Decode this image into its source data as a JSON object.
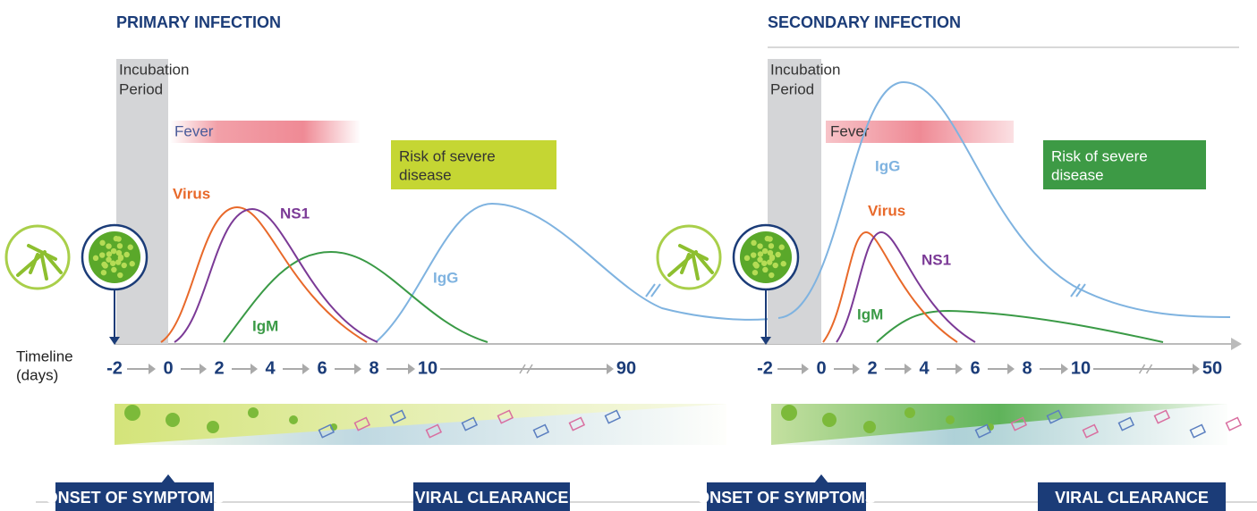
{
  "timeline_label": [
    "Timeline",
    "(days)"
  ],
  "panels": [
    {
      "title": "PRIMARY INFECTION",
      "incubation": [
        "Incubation",
        "Period"
      ],
      "fever": "Fever",
      "risk": [
        "Risk of severe",
        "disease"
      ],
      "curves": {
        "virus": "Virus",
        "ns1": "NS1",
        "igm": "IgM",
        "igg": "IgG"
      },
      "timeline": [
        "-2",
        "0",
        "2",
        "4",
        "6",
        "8",
        "10",
        "90"
      ],
      "footer": [
        "ONSET OF SYMPTOMS",
        "VIRAL CLEARANCE"
      ]
    },
    {
      "title": "SECONDARY INFECTION",
      "incubation": [
        "Incubation",
        "Period"
      ],
      "fever": "Fever",
      "risk": [
        "Risk of severe",
        "disease"
      ],
      "curves": {
        "virus": "Virus",
        "ns1": "NS1",
        "igm": "IgM",
        "igg": "IgG"
      },
      "timeline": [
        "-2",
        "0",
        "2",
        "4",
        "6",
        "8",
        "10",
        "50"
      ],
      "footer": [
        "ONSET OF SYMPTOMS",
        "VIRAL CLEARANCE"
      ]
    }
  ]
}
